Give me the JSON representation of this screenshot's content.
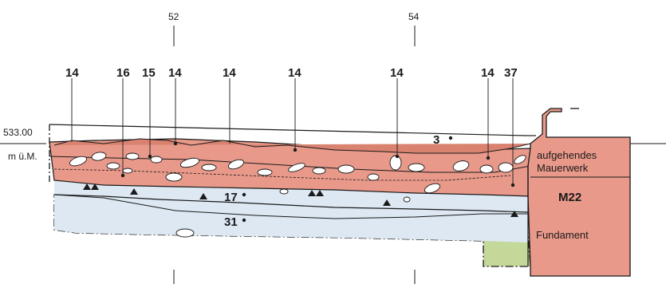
{
  "grid_labels": [
    "52",
    "54"
  ],
  "elevation": {
    "value": "533.00",
    "unit": "m ü.M."
  },
  "layer_labels": {
    "top": [
      "14",
      "16",
      "15",
      "14",
      "14",
      "14",
      "14",
      "14",
      "37"
    ],
    "layer_3": "3",
    "layer_17": "17",
    "layer_31": "31"
  },
  "wall": {
    "rising": "aufgehendes Mauerwerk",
    "rising_line1": "aufgehendes",
    "rising_line2": "Mauerwerk",
    "id": "M22",
    "foundation": "Fundament"
  },
  "colors": {
    "red_layer": "#e8998a",
    "red_dark": "#d9826f",
    "blue_layer": "#dde8f3",
    "green_layer": "#c4d89a",
    "wall_fill": "#e8998a",
    "outline": "#1a1a1a"
  }
}
